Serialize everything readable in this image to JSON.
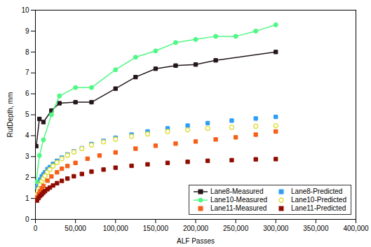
{
  "chart_data": {
    "type": "line",
    "xlabel": "ALF Passes",
    "ylabel": "RutDepth, mm",
    "xlim": [
      0,
      400000
    ],
    "ylim": [
      0,
      10
    ],
    "xticks": [
      0,
      {
        "value": 50000,
        "label": "50,000"
      },
      {
        "value": 100000,
        "label": "100,000"
      },
      {
        "value": 150000,
        "label": "150,000"
      },
      {
        "value": 200000,
        "label": "200,000"
      },
      {
        "value": 250000,
        "label": "250,000"
      },
      {
        "value": 300000,
        "label": "300,000"
      },
      {
        "value": 350000,
        "label": "350,000"
      },
      {
        "value": 400000,
        "label": "400,000"
      }
    ],
    "yticks": [
      0,
      1,
      2,
      3,
      4,
      5,
      6,
      7,
      8,
      9,
      10
    ],
    "grid": false,
    "legend": "lower right",
    "series": [
      {
        "name": "Lane8-Measured",
        "marker": "square",
        "line_style": "solid",
        "x": [
          1000,
          5000,
          10000,
          20000,
          30000,
          50000,
          70000,
          100000,
          125000,
          150000,
          175000,
          200000,
          225000,
          300000
        ],
        "values": [
          3.5,
          4.8,
          4.65,
          5.2,
          5.55,
          5.6,
          5.6,
          6.25,
          6.8,
          7.2,
          7.35,
          7.4,
          7.6,
          8.0
        ]
      },
      {
        "name": "Lane8-Predicted",
        "marker": "square",
        "line_style": "none",
        "x": [
          2000,
          4000,
          6000,
          8000,
          10000,
          12000,
          15000,
          18000,
          22000,
          27000,
          33000,
          40000,
          48000,
          58000,
          70000,
          85000,
          100000,
          120000,
          140000,
          165000,
          190000,
          215000,
          245000,
          275000,
          300000
        ],
        "values": [
          1.55,
          1.75,
          1.9,
          2.05,
          2.15,
          2.25,
          2.4,
          2.5,
          2.65,
          2.8,
          2.95,
          3.1,
          3.25,
          3.4,
          3.6,
          3.75,
          3.9,
          4.05,
          4.2,
          4.35,
          4.48,
          4.6,
          4.72,
          4.82,
          4.9
        ]
      },
      {
        "name": "Lane10-Measured",
        "marker": "circle",
        "line_style": "solid",
        "x": [
          1000,
          5000,
          10000,
          20000,
          30000,
          50000,
          70000,
          100000,
          125000,
          150000,
          175000,
          200000,
          225000,
          250000,
          275000,
          300000
        ],
        "values": [
          1.8,
          3.05,
          3.8,
          5.0,
          5.9,
          6.3,
          6.3,
          7.15,
          7.75,
          8.05,
          8.45,
          8.6,
          8.75,
          8.75,
          9.0,
          9.3
        ]
      },
      {
        "name": "Lane10-Predicted",
        "marker": "open_circle",
        "line_style": "none",
        "x": [
          2000,
          4000,
          6000,
          8000,
          10000,
          12000,
          15000,
          18000,
          22000,
          27000,
          33000,
          40000,
          48000,
          58000,
          70000,
          85000,
          100000,
          120000,
          140000,
          165000,
          190000,
          215000,
          245000,
          275000,
          300000
        ],
        "values": [
          1.2,
          1.45,
          1.65,
          1.82,
          1.95,
          2.08,
          2.25,
          2.38,
          2.55,
          2.72,
          2.9,
          3.06,
          3.22,
          3.38,
          3.55,
          3.7,
          3.83,
          3.97,
          4.08,
          4.2,
          4.28,
          4.35,
          4.4,
          4.45,
          4.48
        ]
      },
      {
        "name": "Lane11-Measured",
        "marker": "square",
        "line_style": "none",
        "x": [
          2000,
          4000,
          6000,
          8000,
          10000,
          15000,
          20000,
          27000,
          33000,
          40000,
          50000,
          65000,
          80000,
          100000,
          125000,
          150000,
          175000,
          200000,
          225000,
          250000,
          275000,
          300000
        ],
        "values": [
          1.05,
          1.2,
          1.35,
          1.48,
          1.6,
          1.85,
          2.05,
          2.25,
          2.42,
          2.55,
          2.7,
          2.9,
          3.05,
          3.2,
          3.38,
          3.52,
          3.62,
          3.72,
          3.82,
          3.92,
          4.05,
          4.2
        ]
      },
      {
        "name": "Lane11-Predicted",
        "marker": "square",
        "line_style": "none",
        "x": [
          2000,
          4000,
          6000,
          8000,
          10000,
          12000,
          15000,
          18000,
          22000,
          27000,
          33000,
          40000,
          48000,
          58000,
          70000,
          85000,
          100000,
          120000,
          140000,
          165000,
          190000,
          215000,
          245000,
          275000,
          300000
        ],
        "values": [
          0.9,
          1.02,
          1.12,
          1.2,
          1.28,
          1.35,
          1.44,
          1.52,
          1.62,
          1.73,
          1.84,
          1.95,
          2.06,
          2.17,
          2.28,
          2.38,
          2.47,
          2.56,
          2.63,
          2.7,
          2.75,
          2.8,
          2.83,
          2.87,
          2.88
        ]
      }
    ]
  }
}
